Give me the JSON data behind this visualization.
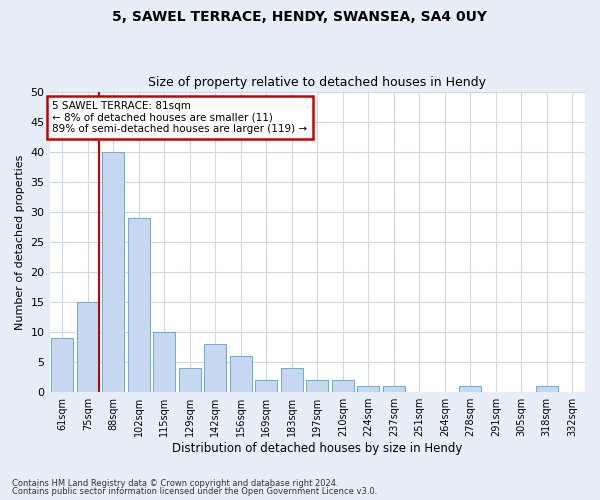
{
  "title1": "5, SAWEL TERRACE, HENDY, SWANSEA, SA4 0UY",
  "title2": "Size of property relative to detached houses in Hendy",
  "xlabel": "Distribution of detached houses by size in Hendy",
  "ylabel": "Number of detached properties",
  "categories": [
    "61sqm",
    "75sqm",
    "88sqm",
    "102sqm",
    "115sqm",
    "129sqm",
    "142sqm",
    "156sqm",
    "169sqm",
    "183sqm",
    "197sqm",
    "210sqm",
    "224sqm",
    "237sqm",
    "251sqm",
    "264sqm",
    "278sqm",
    "291sqm",
    "305sqm",
    "318sqm",
    "332sqm"
  ],
  "values": [
    9,
    15,
    40,
    29,
    10,
    4,
    8,
    6,
    2,
    4,
    2,
    2,
    1,
    1,
    0,
    0,
    1,
    0,
    0,
    1,
    0
  ],
  "bar_color": "#c5d8f0",
  "bar_edge_color": "#6aabd2",
  "ylim": [
    0,
    50
  ],
  "yticks": [
    0,
    5,
    10,
    15,
    20,
    25,
    30,
    35,
    40,
    45,
    50
  ],
  "marker_line_color": "#cc0000",
  "annotation_line1": "5 SAWEL TERRACE: 81sqm",
  "annotation_line2": "← 8% of detached houses are smaller (11)",
  "annotation_line3": "89% of semi-detached houses are larger (119) →",
  "annotation_box_color": "#cc0000",
  "footer1": "Contains HM Land Registry data © Crown copyright and database right 2024.",
  "footer2": "Contains public sector information licensed under the Open Government Licence v3.0.",
  "background_color": "#e8eef8",
  "plot_bg_color": "#ffffff",
  "grid_color": "#d0d8e8"
}
